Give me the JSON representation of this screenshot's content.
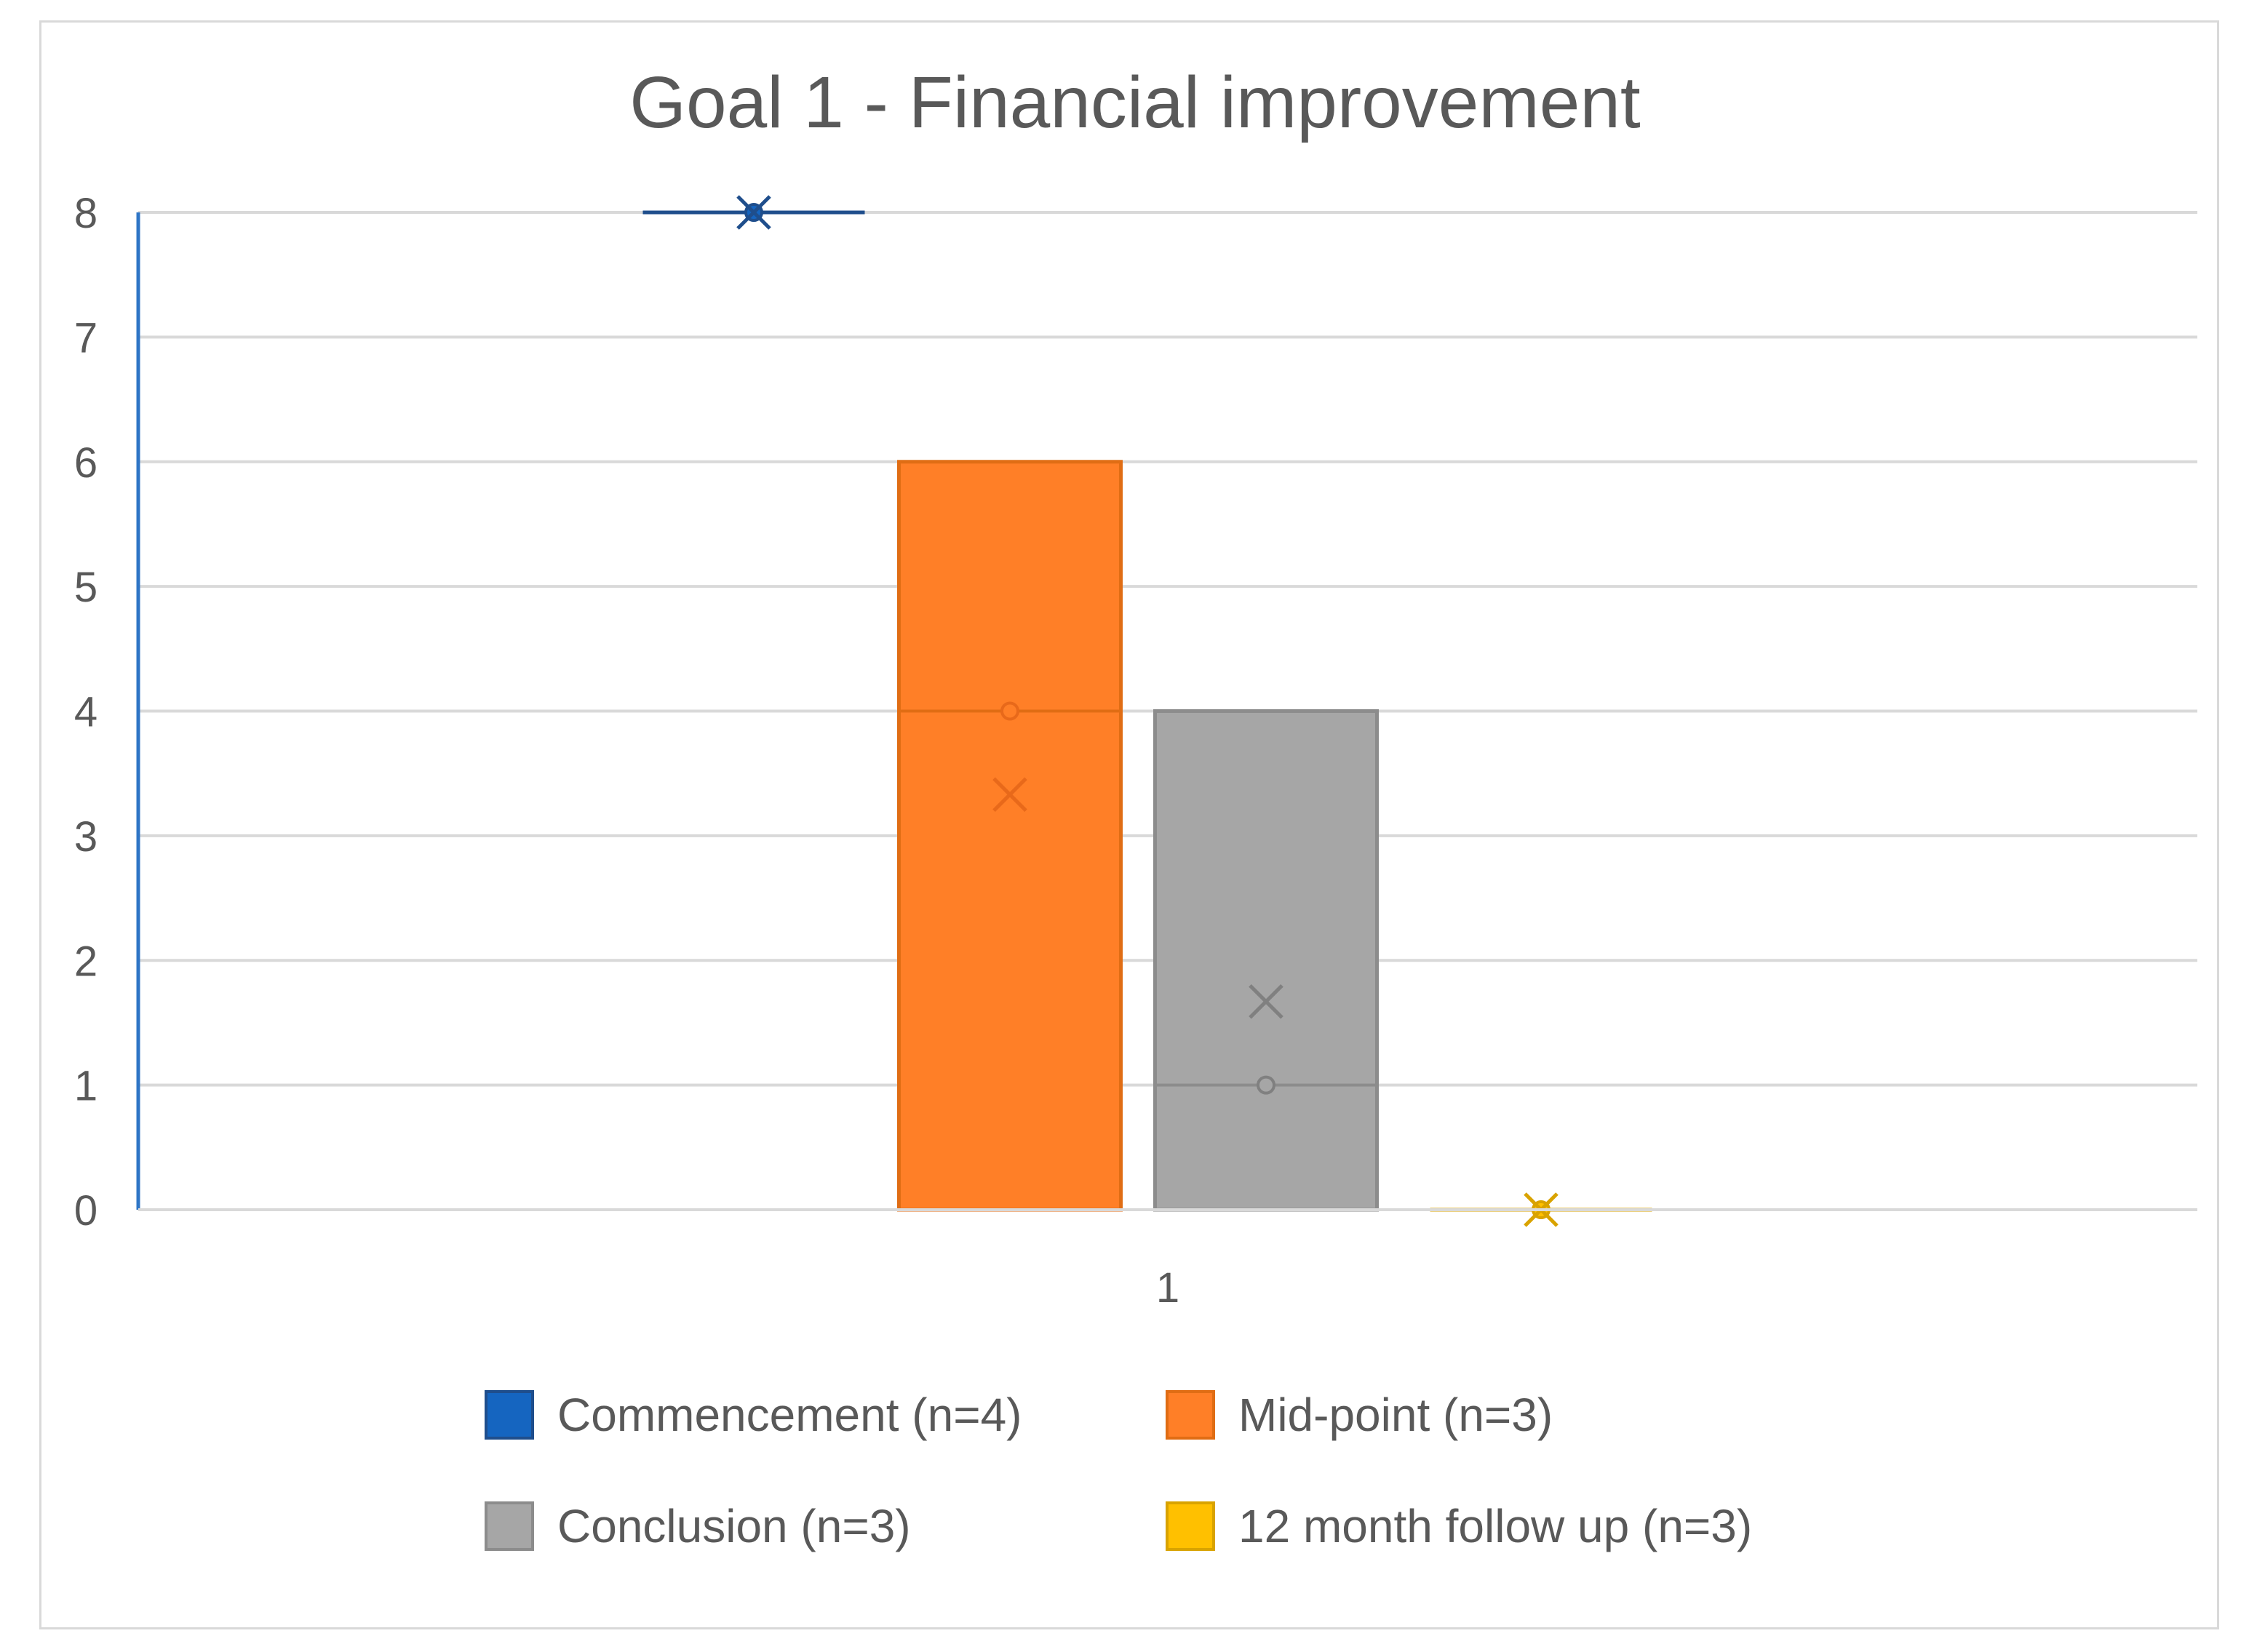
{
  "chart_data": {
    "type": "box",
    "title": "Goal 1 - Financial improvement",
    "xlabel": "",
    "ylabel": "",
    "categories": [
      "1"
    ],
    "ylim": [
      0,
      8
    ],
    "yticks": [
      0,
      1,
      2,
      3,
      4,
      5,
      6,
      7,
      8
    ],
    "grid": true,
    "legend_position": "bottom",
    "series": [
      {
        "name": "Commencement (n=4)",
        "color": "#1565C0",
        "min": 8,
        "q1": 8,
        "median": 8,
        "q3": 8,
        "max": 8,
        "mean": 8
      },
      {
        "name": "Mid-point (n=3)",
        "color": "#FF7F27",
        "min": 0,
        "q1": 0,
        "median": 4,
        "q3": 6,
        "max": 6,
        "mean": 3.33
      },
      {
        "name": "Conclusion (n=3)",
        "color": "#A6A6A6",
        "min": 0,
        "q1": 0,
        "median": 1,
        "q3": 4,
        "max": 4,
        "mean": 1.67
      },
      {
        "name": "12 month follow up (n=3)",
        "color": "#FFC000",
        "min": 0,
        "q1": 0,
        "median": 0,
        "q3": 0,
        "max": 0,
        "mean": 0
      }
    ]
  }
}
